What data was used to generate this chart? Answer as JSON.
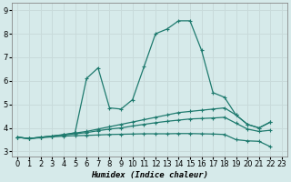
{
  "xlabel": "Humidex (Indice chaleur)",
  "bg_color": "#d6eaea",
  "grid_color": "#c8dada",
  "line_color": "#1e7a6e",
  "xlim": [
    -0.5,
    23.5
  ],
  "ylim": [
    2.8,
    9.3
  ],
  "xticks": [
    0,
    1,
    2,
    3,
    4,
    5,
    6,
    7,
    8,
    9,
    10,
    11,
    12,
    13,
    14,
    15,
    16,
    17,
    18,
    19,
    20,
    21,
    22,
    23
  ],
  "yticks": [
    3,
    4,
    5,
    6,
    7,
    8,
    9
  ],
  "lines": [
    {
      "x": [
        0,
        1,
        2,
        3,
        4,
        5,
        6,
        7,
        8,
        9,
        10,
        11,
        12,
        13,
        14,
        15,
        16,
        17,
        18,
        19,
        20,
        21,
        22
      ],
      "y": [
        3.6,
        3.55,
        3.6,
        3.65,
        3.7,
        3.8,
        6.1,
        6.55,
        4.85,
        4.8,
        5.2,
        6.6,
        8.0,
        8.2,
        8.55,
        8.55,
        7.3,
        5.5,
        5.3,
        4.55,
        4.15,
        4.0,
        4.25
      ]
    },
    {
      "x": [
        0,
        1,
        2,
        3,
        4,
        5,
        6,
        7,
        8,
        9,
        10,
        11,
        12,
        13,
        14,
        15,
        16,
        17,
        18,
        19,
        20,
        21,
        22
      ],
      "y": [
        3.6,
        3.55,
        3.6,
        3.65,
        3.72,
        3.78,
        3.85,
        3.95,
        4.05,
        4.15,
        4.25,
        4.35,
        4.45,
        4.55,
        4.65,
        4.7,
        4.75,
        4.8,
        4.85,
        4.55,
        4.15,
        4.0,
        4.25
      ]
    },
    {
      "x": [
        0,
        1,
        2,
        3,
        4,
        5,
        6,
        7,
        8,
        9,
        10,
        11,
        12,
        13,
        14,
        15,
        16,
        17,
        18,
        19,
        20,
        21,
        22
      ],
      "y": [
        3.6,
        3.55,
        3.6,
        3.65,
        3.7,
        3.75,
        3.8,
        3.88,
        3.95,
        4.0,
        4.08,
        4.15,
        4.22,
        4.28,
        4.33,
        4.38,
        4.4,
        4.42,
        4.45,
        4.2,
        3.95,
        3.85,
        3.9
      ]
    },
    {
      "x": [
        0,
        1,
        2,
        3,
        4,
        5,
        6,
        7,
        8,
        9,
        10,
        11,
        12,
        13,
        14,
        15,
        16,
        17,
        18,
        19,
        20,
        21,
        22
      ],
      "y": [
        3.6,
        3.55,
        3.58,
        3.62,
        3.65,
        3.67,
        3.68,
        3.7,
        3.72,
        3.73,
        3.74,
        3.75,
        3.75,
        3.75,
        3.76,
        3.76,
        3.75,
        3.74,
        3.72,
        3.5,
        3.45,
        3.43,
        3.2
      ]
    }
  ]
}
